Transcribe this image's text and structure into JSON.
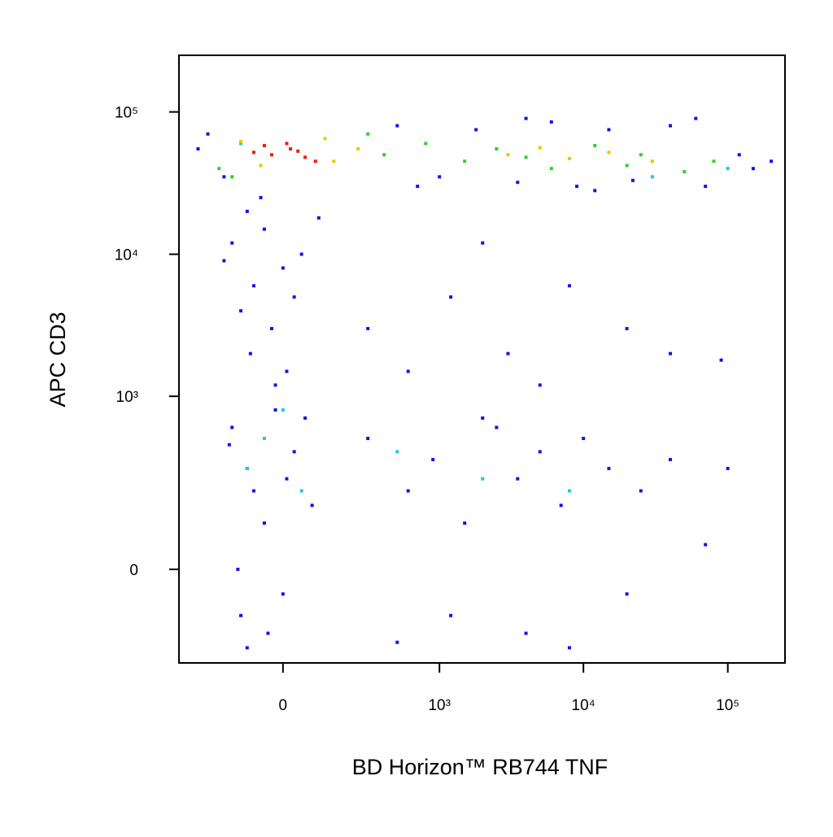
{
  "chart_data": {
    "type": "scatter",
    "x_label": "BD Horizon™ RB744 TNF",
    "y_label": "APC CD3",
    "xscale": "biexponential",
    "yscale": "biexponential",
    "xlim": [
      -420,
      249000
    ],
    "ylim": [
      -264,
      250000
    ],
    "xticks": [
      0,
      {
        "value": 1000,
        "label": "10³"
      },
      {
        "value": 10000,
        "label": "10⁴"
      },
      {
        "value": 100000,
        "label": "10⁵"
      }
    ],
    "yticks": [
      0,
      {
        "value": 1000,
        "label": "10³"
      },
      {
        "value": 10000,
        "label": "10⁴"
      },
      {
        "value": 100000,
        "label": "10⁵"
      }
    ],
    "series": [
      {
        "color": "#1414e6",
        "x": [
          -250,
          -180,
          500,
          1000,
          1800,
          3500,
          6000,
          9000,
          15000,
          22000,
          40000,
          70000,
          120000,
          150000,
          -300,
          700,
          4000,
          12000,
          60000,
          200000,
          -100,
          -50,
          -150,
          0,
          -80,
          50,
          -120,
          -30,
          -90,
          10,
          -60,
          100,
          -180,
          30,
          -20,
          300,
          1200,
          3000,
          8000,
          20000,
          600,
          5000,
          40000,
          90000,
          2000,
          -150,
          -100,
          -50,
          0,
          -120,
          30,
          -80,
          60,
          -130,
          -40,
          10,
          -160,
          80,
          -20,
          -100,
          300,
          600,
          900,
          1500,
          2500,
          3500,
          5000,
          7000,
          10000,
          15000,
          25000,
          40000,
          70000,
          1200,
          4000,
          8000,
          20000,
          500,
          2000,
          100000
        ],
        "values": [
          70000,
          35000,
          80000,
          35000,
          75000,
          32000,
          85000,
          30000,
          75000,
          33000,
          80000,
          30000,
          50000,
          40000,
          55000,
          30000,
          90000,
          28000,
          90000,
          45000,
          20000,
          15000,
          12000,
          8000,
          6000,
          10000,
          4000,
          3000,
          2000,
          1500,
          25000,
          18000,
          9000,
          5000,
          1200,
          3000,
          5000,
          2000,
          6000,
          3000,
          1500,
          1200,
          2000,
          1800,
          12000,
          600,
          300,
          100,
          -50,
          -100,
          400,
          200,
          700,
          0,
          -150,
          250,
          450,
          150,
          800,
          -200,
          500,
          200,
          350,
          100,
          600,
          250,
          400,
          150,
          500,
          300,
          200,
          350,
          50,
          -100,
          -150,
          -200,
          -50,
          -180,
          700,
          300
        ]
      },
      {
        "color": "#20c8e0",
        "x": [
          -100,
          50,
          -50,
          2000,
          500,
          8000,
          30000,
          -120,
          0,
          100000
        ],
        "values": [
          300,
          200,
          500,
          250,
          400,
          200,
          35000,
          60000,
          800,
          40000
        ]
      },
      {
        "color": "#30d030",
        "x": [
          -200,
          400,
          800,
          1500,
          2500,
          6000,
          12000,
          25000,
          50000,
          80000,
          -150,
          300,
          4000,
          20000
        ],
        "values": [
          40000,
          50000,
          60000,
          45000,
          55000,
          40000,
          58000,
          50000,
          38000,
          45000,
          35000,
          70000,
          48000,
          42000
        ]
      },
      {
        "color": "#e8c800",
        "x": [
          150,
          -120,
          250,
          3000,
          8000,
          15000,
          30000,
          5000,
          -60,
          120
        ],
        "values": [
          45000,
          62000,
          55000,
          50000,
          47000,
          52000,
          45000,
          56000,
          42000,
          65000
        ]
      },
      {
        "color": "#e81e0a",
        "x": [
          -30,
          20,
          60,
          -80,
          10,
          90,
          -50,
          40
        ],
        "values": [
          50000,
          55000,
          48000,
          52000,
          60000,
          45000,
          58000,
          53000
        ]
      }
    ]
  }
}
